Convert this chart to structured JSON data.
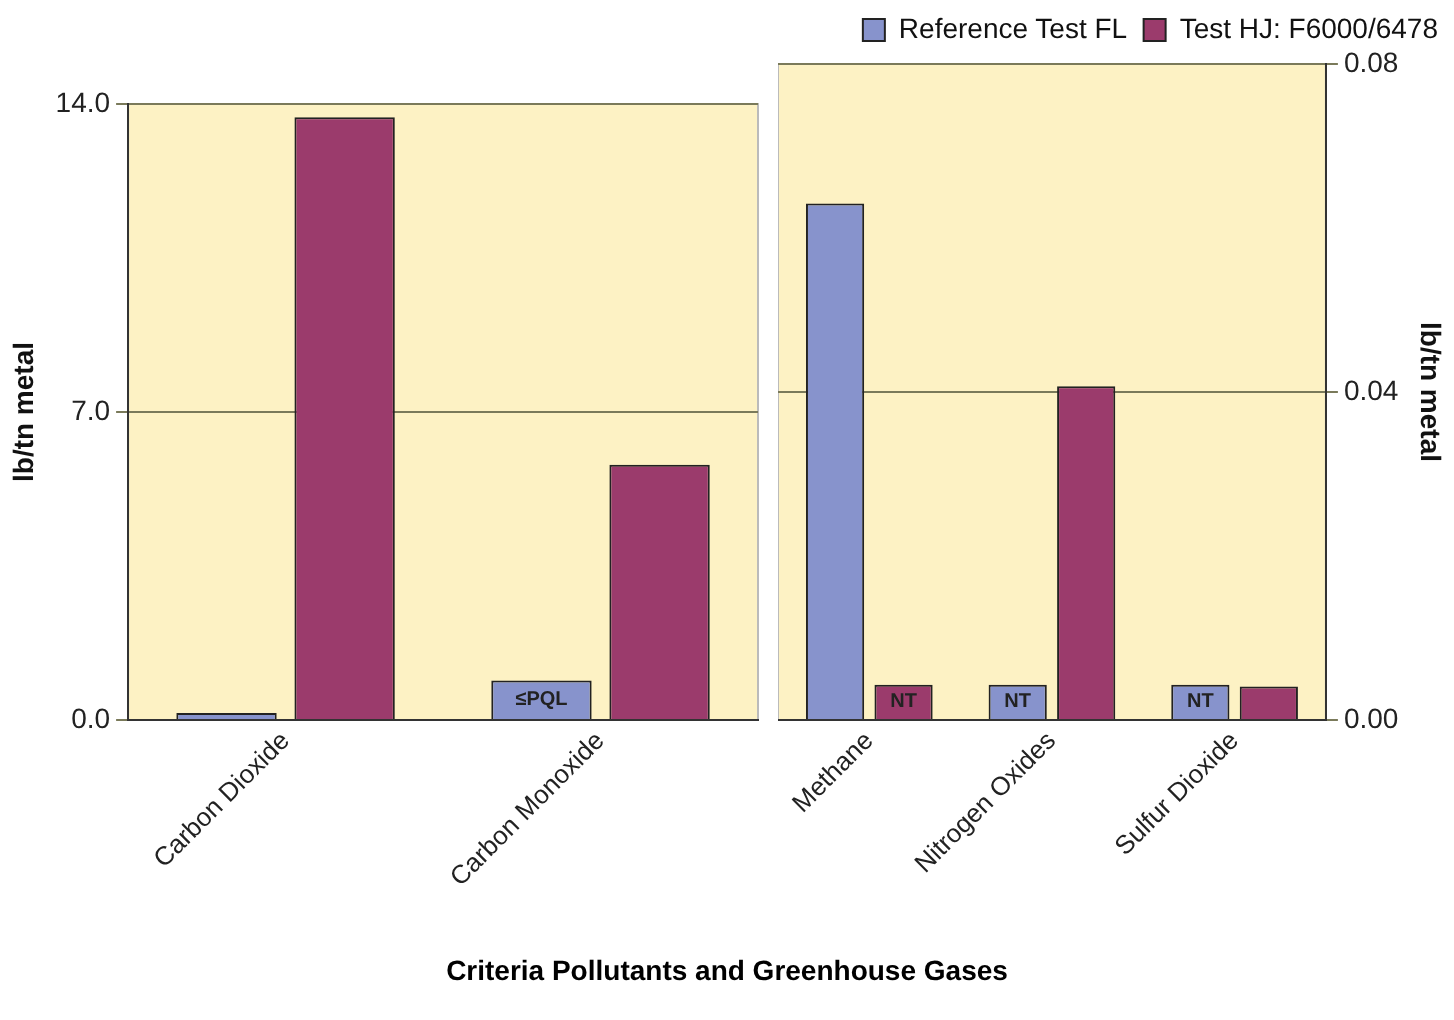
{
  "chart_data": [
    {
      "type": "bar",
      "xlabel": "Criteria Pollutants and Greenhouse Gases",
      "ylabel": "lb/tn metal",
      "categories": [
        "Carbon Dioxide",
        "Carbon Monoxide"
      ],
      "series": [
        {
          "color": "#8793cc",
          "values": [
            0.16,
            0.9
          ],
          "value_labels": [
            null,
            "≤PQL"
          ]
        },
        {
          "color": "#9b3b6c",
          "values": [
            13.7,
            5.8
          ]
        }
      ],
      "ylim": [
        0,
        14
      ],
      "yticks": [
        {
          "value": 0,
          "label": "0.0"
        },
        {
          "value": 7,
          "label": "7.0"
        },
        {
          "value": 14,
          "label": "14.0"
        }
      ],
      "grid": "y",
      "legend": false
    },
    {
      "type": "bar",
      "y2label": "lb/tn metal",
      "categories": [
        "Methane",
        "Nitrogen Oxides",
        "Sulfur Dioxide"
      ],
      "series": [
        {
          "name": "Reference Test FL",
          "color": "#8793cc",
          "axis": "y2",
          "values": [
            0.063,
            0.0043,
            0.0043
          ],
          "value_labels": [
            null,
            "NT",
            "NT"
          ]
        },
        {
          "name": "Test HJ: F6000/6478",
          "color": "#9b3b6c",
          "axis": "y2",
          "values": [
            0.0043,
            0.0407,
            0.0041
          ],
          "value_labels": [
            "NT",
            null,
            null
          ]
        }
      ],
      "y2lim": [
        0,
        0.08
      ],
      "y2ticks": [
        {
          "value": 0,
          "label": "0.00"
        },
        0.04,
        0.08
      ],
      "grid": "y",
      "legend": "top right"
    }
  ]
}
